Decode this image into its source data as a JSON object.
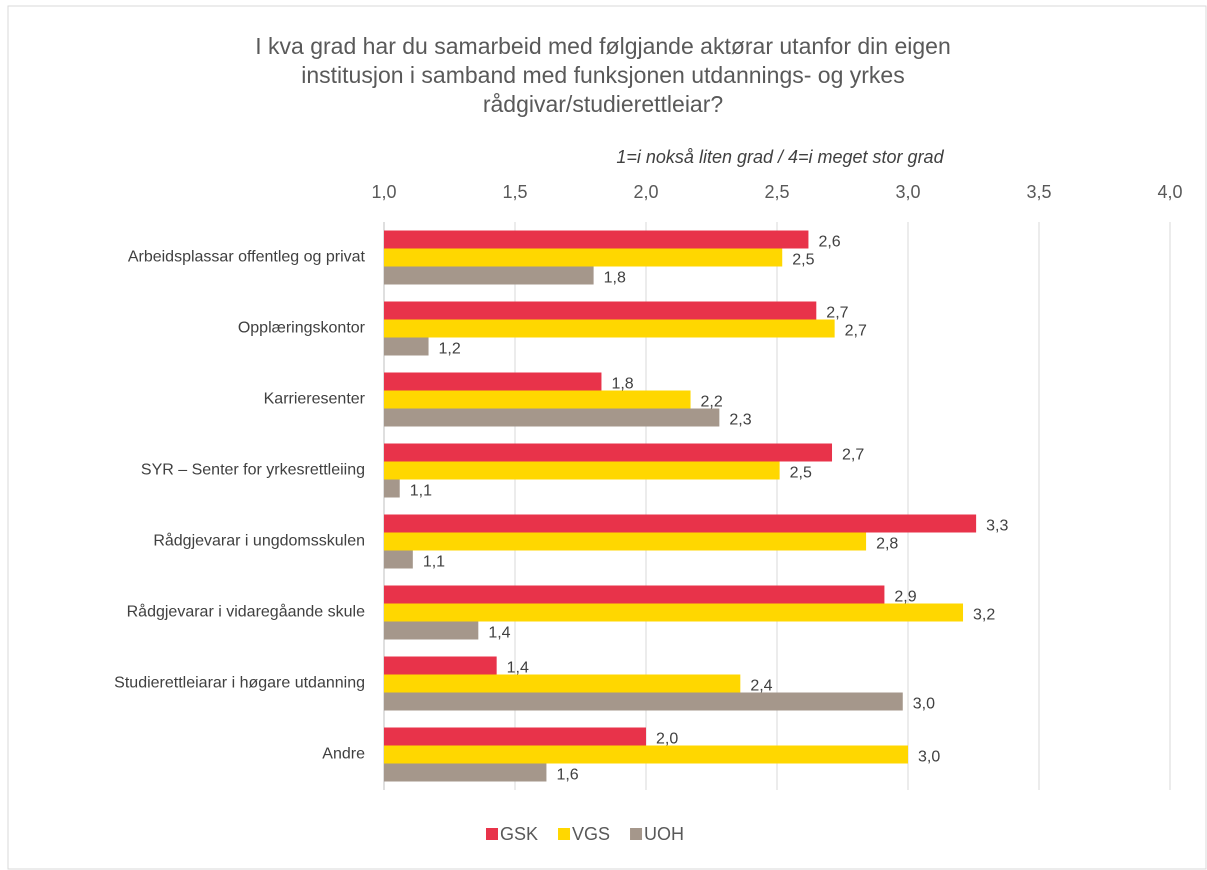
{
  "chart_data": {
    "type": "bar",
    "orientation": "horizontal",
    "title": [
      "I kva grad har du samarbeid med følgjande aktørar utanfor din eigen",
      "institusjon i samband med funksjonen utdannings- og yrkes",
      "rådgivar/studierettleiar?"
    ],
    "subtitle": "1=i nokså liten grad / 4=i meget stor grad",
    "categories": [
      "Arbeidsplassar offentleg og privat",
      "Opplæringskontor",
      "Karrieresenter",
      "SYR – Senter for yrkesrettleiing",
      "Rådgjevarar i ungdomsskulen",
      "Rådgjevarar i vidaregåande skule",
      "Studierettleiarar i høgare utdanning",
      "Andre"
    ],
    "series": [
      {
        "name": "GSK",
        "color": "#e8334a",
        "values": [
          2.62,
          2.65,
          1.83,
          2.71,
          3.26,
          2.91,
          1.43,
          2.0
        ],
        "value_labels": [
          "2,6",
          "2,7",
          "1,8",
          "2,7",
          "3,3",
          "2,9",
          "1,4",
          "2,0"
        ]
      },
      {
        "name": "VGS",
        "color": "#ffd700",
        "values": [
          2.52,
          2.72,
          2.17,
          2.51,
          2.84,
          3.21,
          2.36,
          3.0
        ],
        "value_labels": [
          "2,5",
          "2,7",
          "2,2",
          "2,5",
          "2,8",
          "3,2",
          "2,4",
          "3,0"
        ]
      },
      {
        "name": "UOH",
        "color": "#a5978b",
        "values": [
          1.8,
          1.17,
          2.28,
          1.06,
          1.11,
          1.36,
          2.98,
          1.62
        ],
        "value_labels": [
          "1,8",
          "1,2",
          "2,3",
          "1,1",
          "1,1",
          "1,4",
          "3,0",
          "1,6"
        ]
      }
    ],
    "xlim": [
      1,
      4
    ],
    "xticks": [
      {
        "value": 1,
        "label": "1,0"
      },
      {
        "value": 1.5,
        "label": "1,5"
      },
      {
        "value": 2,
        "label": "2,0"
      },
      {
        "value": 2.5,
        "label": "2,5"
      },
      {
        "value": 3,
        "label": "3,0"
      },
      {
        "value": 3.5,
        "label": "3,5"
      },
      {
        "value": 4,
        "label": "4,0"
      }
    ],
    "grid": true,
    "legend": "bottom"
  }
}
